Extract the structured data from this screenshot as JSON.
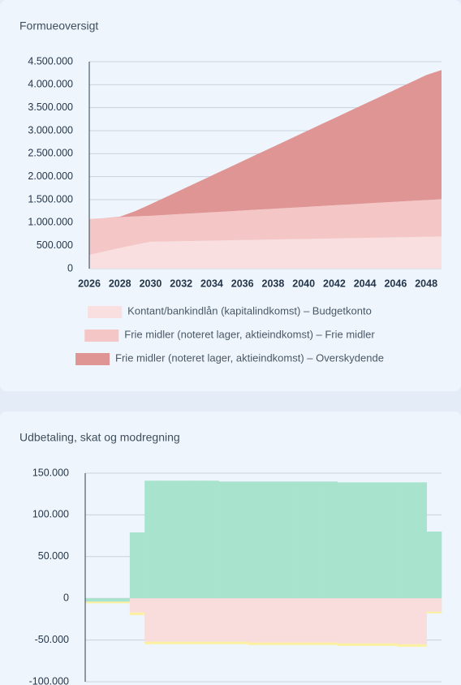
{
  "chart_data": [
    {
      "type": "area",
      "title": "Formueoversigt",
      "x": [
        2026,
        2027,
        2028,
        2029,
        2030,
        2031,
        2032,
        2033,
        2034,
        2035,
        2036,
        2037,
        2038,
        2039,
        2040,
        2041,
        2042,
        2043,
        2044,
        2045,
        2046,
        2047,
        2048,
        2049
      ],
      "xlim": [
        2026,
        2049
      ],
      "xticks": [
        2026,
        2028,
        2030,
        2032,
        2034,
        2036,
        2038,
        2040,
        2042,
        2044,
        2046,
        2048
      ],
      "ylim": [
        0,
        4500000
      ],
      "yticks": [
        0,
        {
          "value": 500000,
          "label": "500.000"
        },
        {
          "value": 1000000,
          "label": "1.000.000"
        },
        {
          "value": 1500000,
          "label": "1.500.000"
        },
        {
          "value": 2000000,
          "label": "2.000.000"
        },
        {
          "value": 2500000,
          "label": "2.500.000"
        },
        {
          "value": 3000000,
          "label": "3.000.000"
        },
        {
          "value": 3500000,
          "label": "3.500.000"
        },
        {
          "value": 4000000,
          "label": "4.000.000"
        },
        {
          "value": 4500000,
          "label": "4.500.000"
        }
      ],
      "grid": true,
      "stacked": true,
      "series": [
        {
          "name": "Kontant/bankindlån (kapitalindkomst) – Budgetkonto",
          "color": "#f9dfdf",
          "values": [
            300000,
            375000,
            450000,
            520000,
            585000,
            591000,
            597000,
            603000,
            609000,
            615000,
            621000,
            627000,
            633000,
            639000,
            645000,
            651000,
            657000,
            663000,
            669000,
            675000,
            681000,
            687000,
            693000,
            700000
          ]
        },
        {
          "name": "Frie midler (noteret lager, aktieindkomst) – Frie midler",
          "color": "#f5c6c6",
          "values": [
            780000,
            725000,
            670000,
            615000,
            565000,
            578000,
            591000,
            604000,
            617000,
            630000,
            643000,
            656000,
            669000,
            682000,
            695000,
            708000,
            721000,
            734000,
            747000,
            760000,
            773000,
            786000,
            799000,
            810000
          ]
        },
        {
          "name": "Frie midler (noteret lager, aktieindkomst) – Overskydende",
          "color": "#df9594",
          "values": [
            0,
            0,
            10000,
            115000,
            250000,
            387000,
            524000,
            661000,
            798000,
            935000,
            1072000,
            1209000,
            1346000,
            1483000,
            1620000,
            1757000,
            1894000,
            2031000,
            2168000,
            2305000,
            2442000,
            2579000,
            2716000,
            2810000
          ]
        }
      ]
    },
    {
      "type": "bar",
      "title": "Udbetaling, skat og modregning",
      "categories": [
        null,
        null,
        null,
        null,
        null,
        null,
        null,
        null,
        null,
        null,
        null,
        null,
        null,
        null,
        null,
        null,
        null,
        null,
        null,
        null,
        null,
        null,
        null,
        null
      ],
      "ylim": [
        -100000,
        150000
      ],
      "yticks": [
        {
          "value": -100000,
          "label": "-100.000"
        },
        {
          "value": -50000,
          "label": "-50.000"
        },
        0,
        {
          "value": 50000,
          "label": "50.000"
        },
        {
          "value": 100000,
          "label": "100.000"
        },
        {
          "value": 150000,
          "label": "150.000"
        }
      ],
      "grid": true,
      "stacked": true,
      "series": [
        {
          "color": "#a8e4cd",
          "values": [
            -4000,
            -4000,
            -4000,
            79000,
            141000,
            141000,
            141000,
            141000,
            141000,
            140000,
            140000,
            140000,
            140000,
            140000,
            140000,
            140000,
            140000,
            139000,
            139000,
            139000,
            139000,
            139000,
            139000,
            80000
          ]
        },
        {
          "color": "#f9dcdc",
          "values": [
            0,
            0,
            0,
            -17000,
            -52000,
            -52000,
            -52000,
            -52000,
            -52000,
            -52000,
            -52000,
            -53000,
            -53000,
            -53000,
            -53000,
            -53000,
            -53000,
            -54000,
            -54000,
            -54000,
            -54000,
            -55000,
            -55000,
            -16000
          ]
        },
        {
          "color": "#fbf0a0",
          "values": [
            -2000,
            -2000,
            -2000,
            -3000,
            -3000,
            -3000,
            -3000,
            -3000,
            -3000,
            -3000,
            -3000,
            -3000,
            -3000,
            -3000,
            -3000,
            -3000,
            -3000,
            -3000,
            -3000,
            -3000,
            -3000,
            -3000,
            -3000,
            -2000
          ]
        }
      ]
    }
  ]
}
